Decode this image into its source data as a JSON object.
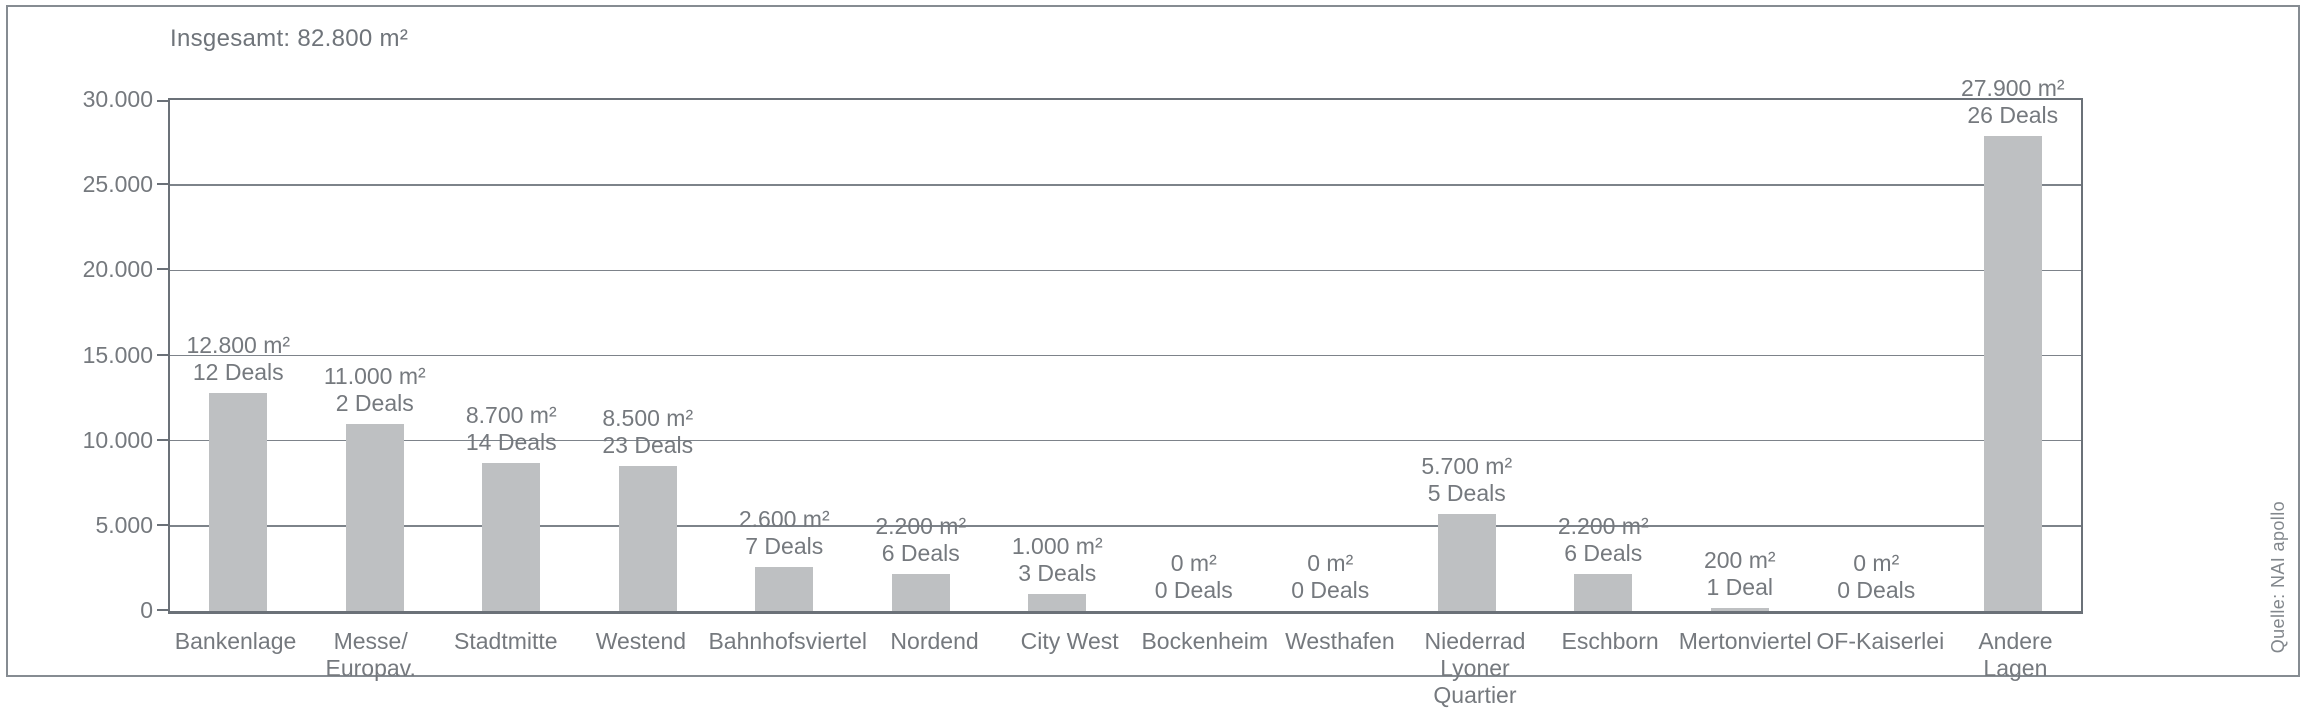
{
  "title": "Insgesamt: 82.800 m²",
  "source": "Quelle: NAI apollo",
  "colors": {
    "bar": "#bec0c2",
    "axis": "#6b7178",
    "gridline": "#7d838a",
    "text": "#75797e",
    "frame_border": "#868c92",
    "background": "#ffffff"
  },
  "chart_data": {
    "type": "bar",
    "title": "Insgesamt: 82.800 m²",
    "unit": "m²",
    "categories": [
      "Bankenlage",
      "Messe/\nEuropav.",
      "Stadtmitte",
      "Westend",
      "Bahnhofsviertel",
      "Nordend",
      "City West",
      "Bockenheim",
      "Westhafen",
      "Niederrad\nLyoner Quartier",
      "Eschborn",
      "Mertonviertel",
      "OF-Kaiserlei",
      "Andere Lagen"
    ],
    "values": [
      12800,
      11000,
      8700,
      8500,
      2600,
      2200,
      1000,
      0,
      0,
      5700,
      2200,
      200,
      0,
      27900
    ],
    "deals": [
      12,
      2,
      14,
      23,
      7,
      6,
      3,
      0,
      0,
      5,
      6,
      1,
      0,
      26
    ],
    "value_labels": [
      "12.800 m²",
      "11.000 m²",
      "8.700 m²",
      "8.500 m²",
      "2.600 m²",
      "2.200 m²",
      "1.000 m²",
      "0 m²",
      "0 m²",
      "5.700 m²",
      "2.200 m²",
      "200 m²",
      "0 m²",
      "27.900 m²"
    ],
    "deals_labels": [
      "12 Deals",
      "2 Deals",
      "14 Deals",
      "23 Deals",
      "7 Deals",
      "6 Deals",
      "3 Deals",
      "0 Deals",
      "0 Deals",
      "5 Deals",
      "6 Deals",
      "1 Deal",
      "0 Deals",
      "26 Deals"
    ],
    "y_ticks": [
      {
        "label": "30.000",
        "value": 30000
      },
      {
        "label": "25.000",
        "value": 25000
      },
      {
        "label": "20.000",
        "value": 20000
      },
      {
        "label": "15.000",
        "value": 15000
      },
      {
        "label": "10.000",
        "value": 10000
      },
      {
        "label": "5.000",
        "value": 5000
      },
      {
        "label": "0",
        "value": 0
      }
    ],
    "ylim": [
      0,
      30000
    ],
    "grid": true,
    "legend": false,
    "source": "Quelle: NAI apollo"
  }
}
